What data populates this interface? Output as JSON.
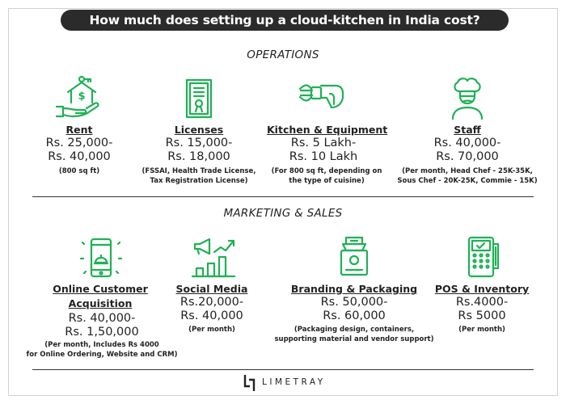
{
  "title": "How much does setting up a cloud-kitchen in India cost?",
  "colors": {
    "accent": "#1fb154",
    "title_bg": "#2b2b2b"
  },
  "operations": {
    "heading": "OPERATIONS",
    "items": [
      {
        "icon": "house-money-hand-icon",
        "label": "Rent",
        "value1": "Rs. 25,000-",
        "value2": "Rs. 40,000",
        "note1": "(800 sq ft)",
        "note2": ""
      },
      {
        "icon": "certificate-icon",
        "label": "Licenses",
        "value1": "Rs. 15,000-",
        "value2": "Rs. 18,000",
        "note1": "(FSSAI, Health Trade License,",
        "note2": "Tax Registration License)"
      },
      {
        "icon": "hand-mixer-icon",
        "label": "Kitchen & Equipment",
        "value1": "Rs. 5 Lakh-",
        "value2": "Rs. 10 Lakh",
        "note1": "(For 800 sq ft, depending on",
        "note2": "the type of cuisine)"
      },
      {
        "icon": "chef-icon",
        "label": "Staff",
        "value1": "Rs. 40,000-",
        "value2": "Rs. 70,000",
        "note1": "(Per month,  Head Chef - 25K-35K,",
        "note2": "Sous Chef - 20K-25K, Commie - 15K)"
      }
    ]
  },
  "marketing": {
    "heading": "MARKETING & SALES",
    "items": [
      {
        "icon": "mobile-food-icon",
        "label1": "Online Customer",
        "label2": "Acquisition",
        "value1": "Rs. 40,000-",
        "value2": "Rs. 1,50,000",
        "note1": "(Per month, Includes Rs 4000",
        "note2": "for Online Ordering, Website and CRM)"
      },
      {
        "icon": "megaphone-growth-chart-icon",
        "label": "Social Media",
        "value1": "Rs.20,000-",
        "value2": "Rs. 40,000",
        "note1": "(Per month)",
        "note2": ""
      },
      {
        "icon": "takeaway-bag-icon",
        "label": "Branding & Packaging",
        "value1": "Rs. 50,000-",
        "value2": "Rs. 60,000",
        "note1": "(Packaging design, containers,",
        "note2": "supporting material and vendor support)"
      },
      {
        "icon": "pos-terminal-icon",
        "label": "POS & Inventory",
        "value1": "Rs.4000-",
        "value2": "Rs 5000",
        "note1": "(Per month)",
        "note2": ""
      }
    ]
  },
  "footer": {
    "brand": "LIMETRAY"
  }
}
